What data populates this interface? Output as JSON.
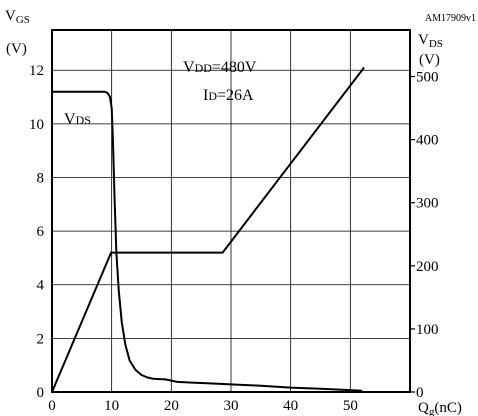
{
  "chart_data": {
    "type": "line",
    "code": "AM17909v1",
    "left_axis": {
      "label_main": "V",
      "label_sub": "GS",
      "unit": "(V)",
      "ylim": [
        0,
        13.5
      ],
      "ticks": [
        0,
        2,
        4,
        6,
        8,
        10,
        12
      ]
    },
    "right_axis": {
      "label_main": "V",
      "label_sub": "DS",
      "unit": "(V)",
      "ylim": [
        0,
        573.75
      ],
      "ticks": [
        0,
        100,
        200,
        300,
        400,
        500
      ]
    },
    "x_axis": {
      "label_main": "Q",
      "label_sub": "g",
      "unit": "(nC)",
      "xlim": [
        0,
        60
      ],
      "ticks": [
        0,
        10,
        20,
        30,
        40,
        50
      ]
    },
    "grid": true,
    "annotations": {
      "vdd_main": "V",
      "vdd_sub": "DD",
      "vdd_value": "=480V",
      "id_main": "I",
      "id_sub": "D",
      "id_value": "=26A",
      "curve_main": "V",
      "curve_sub": "DS"
    },
    "series": [
      {
        "axis": "left",
        "points": [
          [
            0,
            0
          ],
          [
            9.9,
            5.2
          ],
          [
            28.6,
            5.2
          ],
          [
            52.3,
            12.1
          ]
        ]
      },
      {
        "axis": "right",
        "points": [
          [
            0,
            476
          ],
          [
            8.8,
            476
          ],
          [
            9.3,
            474
          ],
          [
            9.7,
            468
          ],
          [
            10.0,
            450
          ],
          [
            10.2,
            400
          ],
          [
            10.5,
            300
          ],
          [
            10.8,
            220
          ],
          [
            11.2,
            160
          ],
          [
            11.7,
            110
          ],
          [
            12.3,
            75
          ],
          [
            13.0,
            50
          ],
          [
            14.0,
            35
          ],
          [
            15.0,
            27
          ],
          [
            16.0,
            23
          ],
          [
            17.0,
            21
          ],
          [
            18.0,
            20.5
          ],
          [
            19.0,
            20
          ],
          [
            20.0,
            18
          ],
          [
            21.0,
            16
          ],
          [
            23.0,
            15
          ],
          [
            26.0,
            14
          ],
          [
            30.0,
            12
          ],
          [
            35.0,
            10
          ],
          [
            40.0,
            7
          ],
          [
            45.0,
            5
          ],
          [
            50.0,
            3
          ],
          [
            52.0,
            2
          ]
        ]
      }
    ]
  }
}
